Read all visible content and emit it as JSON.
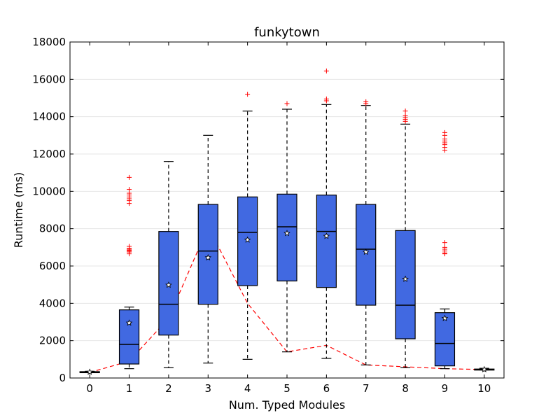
{
  "chart_data": {
    "type": "box",
    "title": "funkytown",
    "xlabel": "Num. Typed Modules",
    "ylabel": "Runtime (ms)",
    "ylim": [
      0,
      18000
    ],
    "yticks": [
      0,
      2000,
      4000,
      6000,
      8000,
      10000,
      12000,
      14000,
      16000,
      18000
    ],
    "xticks": [
      0,
      1,
      2,
      3,
      4,
      5,
      6,
      7,
      8,
      9,
      10
    ],
    "grid": "horizontal",
    "colors": {
      "box_fill": "#4169e1",
      "box_edge": "#000000",
      "median": "#000000",
      "whisker": "#000000",
      "outlier": "#ff0000",
      "mean_marker": "#ffffff",
      "trend_line": "#ff0000",
      "grid": "#e6e6e6"
    },
    "boxes": [
      {
        "x": 0,
        "whislo": 300,
        "q1": 300,
        "med": 320,
        "q3": 340,
        "whishi": 360,
        "mean": 320,
        "outliers": []
      },
      {
        "x": 1,
        "whislo": 500,
        "q1": 750,
        "med": 1800,
        "q3": 3650,
        "whishi": 3800,
        "mean": 2950,
        "outliers": [
          6650,
          6750,
          6800,
          6850,
          6900,
          6950,
          7050,
          9350,
          9500,
          9600,
          9700,
          9800,
          9900,
          10100,
          10750
        ]
      },
      {
        "x": 2,
        "whislo": 550,
        "q1": 2300,
        "med": 3950,
        "q3": 7850,
        "whishi": 11600,
        "mean": 4980,
        "outliers": []
      },
      {
        "x": 3,
        "whislo": 800,
        "q1": 3950,
        "med": 6800,
        "q3": 9300,
        "whishi": 13000,
        "mean": 6450,
        "outliers": []
      },
      {
        "x": 4,
        "whislo": 1000,
        "q1": 4950,
        "med": 7800,
        "q3": 9700,
        "whishi": 14300,
        "mean": 7400,
        "outliers": [
          15200
        ]
      },
      {
        "x": 5,
        "whislo": 1400,
        "q1": 5200,
        "med": 8100,
        "q3": 9850,
        "whishi": 14400,
        "mean": 7750,
        "outliers": [
          14700
        ]
      },
      {
        "x": 6,
        "whislo": 1050,
        "q1": 4850,
        "med": 7850,
        "q3": 9800,
        "whishi": 14650,
        "mean": 7600,
        "outliers": [
          14850,
          14950,
          16450
        ]
      },
      {
        "x": 7,
        "whislo": 700,
        "q1": 3900,
        "med": 6900,
        "q3": 9300,
        "whishi": 14600,
        "mean": 6750,
        "outliers": [
          14700,
          14800
        ]
      },
      {
        "x": 8,
        "whislo": 550,
        "q1": 2100,
        "med": 3900,
        "q3": 7900,
        "whishi": 13600,
        "mean": 5300,
        "outliers": [
          13750,
          13850,
          13950,
          14050,
          14300
        ]
      },
      {
        "x": 9,
        "whislo": 500,
        "q1": 650,
        "med": 1850,
        "q3": 3500,
        "whishi": 3700,
        "mean": 3200,
        "outliers": [
          6650,
          6700,
          6800,
          6900,
          7000,
          7250,
          12200,
          12350,
          12500,
          12600,
          12700,
          12800,
          13000,
          13150
        ]
      },
      {
        "x": 10,
        "whislo": 430,
        "q1": 450,
        "med": 460,
        "q3": 480,
        "whishi": 520,
        "mean": 460,
        "outliers": []
      }
    ],
    "trend_line": {
      "style": "dashed",
      "x": [
        0,
        1,
        2,
        3,
        4,
        5,
        6,
        7,
        8,
        9,
        10
      ],
      "y": [
        300,
        900,
        3200,
        8100,
        4000,
        1400,
        1750,
        700,
        600,
        500,
        450
      ]
    }
  }
}
